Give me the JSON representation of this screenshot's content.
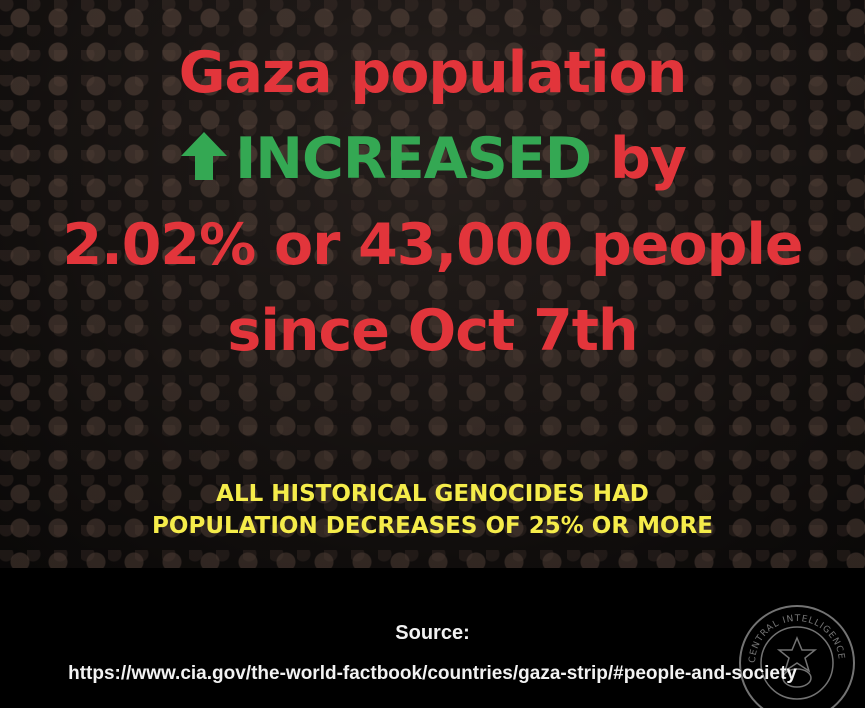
{
  "headline": {
    "line1": "Gaza population",
    "increased": "INCREASED",
    "by": " by",
    "line3": "2.02% or 43,000 people",
    "line4": "since Oct 7th"
  },
  "subline": {
    "line1": "ALL HISTORICAL GENOCIDES HAD",
    "line2": "POPULATION DECREASES OF 25% OR MORE"
  },
  "footer": {
    "source_label": "Source:",
    "source_url": "https://www.cia.gov/the-world-factbook/countries/gaza-strip/#people-and-society",
    "seal_text": "CENTRAL INTELLIGENCE AGENCY"
  },
  "icons": {
    "arrow": "up-arrow-icon",
    "seal": "cia-seal-icon"
  },
  "colors": {
    "headline_red": "#e2353b",
    "increased_green": "#34a853",
    "subline_yellow": "#f5ec4a"
  }
}
